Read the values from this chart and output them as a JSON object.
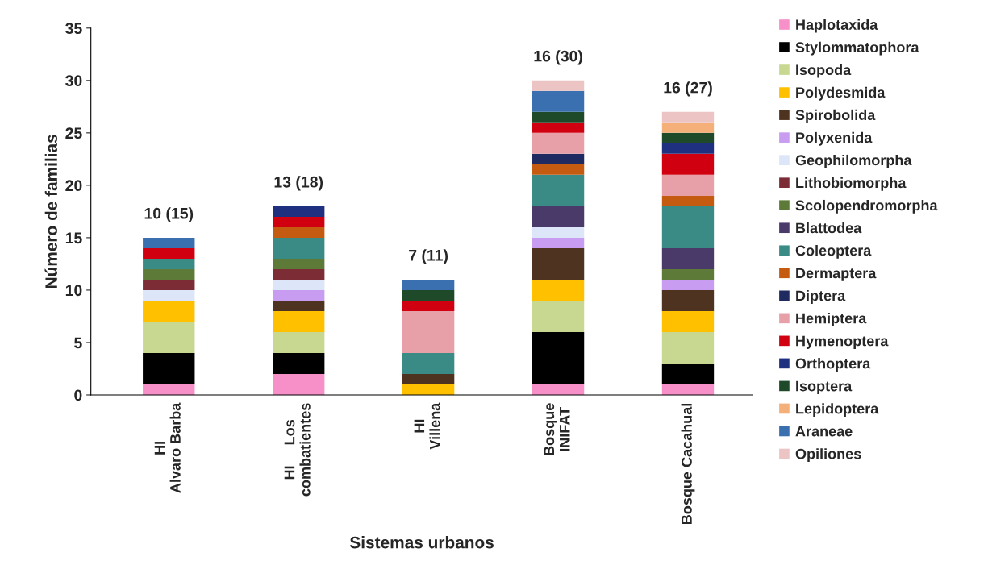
{
  "chart_data": {
    "type": "bar",
    "stacked": true,
    "xlabel": "Sistemas urbanos",
    "ylabel": "Número de familias",
    "categories": [
      "HI\nAlvaro Barba",
      "HI     Los\ncombatientes",
      "HI\nVillena",
      "Bosque\nINIFAT",
      "Bosque Cacahual"
    ],
    "ylim": [
      0,
      35
    ],
    "yticks": [
      0,
      5,
      10,
      15,
      20,
      25,
      30,
      35
    ],
    "grid": false,
    "legend": "right",
    "series": [
      {
        "name": "Haplotaxida",
        "color": "#f78fc8",
        "values": [
          1,
          2,
          0,
          1,
          1
        ]
      },
      {
        "name": "Stylommatophora",
        "color": "#000000",
        "values": [
          3,
          2,
          0,
          5,
          2
        ]
      },
      {
        "name": "Isopoda",
        "color": "#c8d890",
        "values": [
          3,
          2,
          0,
          3,
          3
        ]
      },
      {
        "name": "Polydesmida",
        "color": "#ffc000",
        "values": [
          2,
          2,
          1,
          2,
          2
        ]
      },
      {
        "name": "Spirobolida",
        "color": "#4e3320",
        "values": [
          0,
          1,
          1,
          3,
          2
        ]
      },
      {
        "name": "Polyxenida",
        "color": "#c89cf0",
        "values": [
          0,
          1,
          0,
          1,
          1
        ]
      },
      {
        "name": "Geophilomorpha",
        "color": "#dce6f8",
        "values": [
          1,
          1,
          0,
          1,
          0
        ]
      },
      {
        "name": "Lithobiomorpha",
        "color": "#7b2c34",
        "values": [
          1,
          1,
          0,
          0,
          0
        ]
      },
      {
        "name": "Scolopendromorpha",
        "color": "#5e7a38",
        "values": [
          1,
          1,
          0,
          0,
          1
        ]
      },
      {
        "name": "Blattodea",
        "color": "#4a3a6a",
        "values": [
          0,
          0,
          0,
          2,
          2
        ]
      },
      {
        "name": "Coleoptera",
        "color": "#3a8a86",
        "values": [
          1,
          2,
          2,
          3,
          4
        ]
      },
      {
        "name": "Dermaptera",
        "color": "#c55a11",
        "values": [
          0,
          1,
          0,
          1,
          1
        ]
      },
      {
        "name": "Diptera",
        "color": "#1f2a60",
        "values": [
          0,
          0,
          0,
          1,
          0
        ]
      },
      {
        "name": "Hemiptera",
        "color": "#e8a0a8",
        "values": [
          0,
          0,
          4,
          2,
          2
        ]
      },
      {
        "name": "Hymenoptera",
        "color": "#d00010",
        "values": [
          1,
          1,
          1,
          1,
          2
        ]
      },
      {
        "name": "Orthoptera",
        "color": "#203080",
        "values": [
          0,
          1,
          0,
          0,
          1
        ]
      },
      {
        "name": "Isoptera",
        "color": "#1e4a2a",
        "values": [
          0,
          0,
          1,
          1,
          1
        ]
      },
      {
        "name": "Lepidoptera",
        "color": "#f4b078",
        "values": [
          0,
          0,
          0,
          0,
          1
        ]
      },
      {
        "name": "Araneae",
        "color": "#3a70b0",
        "values": [
          1,
          0,
          1,
          2,
          0
        ]
      },
      {
        "name": "Opiliones",
        "color": "#ecc4c4",
        "values": [
          0,
          0,
          0,
          1,
          1
        ]
      }
    ],
    "annotations": [
      {
        "text": "10 (15)",
        "x": "HI\nAlvaro Barba",
        "y": 15
      },
      {
        "text": "13 (18)",
        "x": "HI     Los\ncombatientes",
        "y": 18
      },
      {
        "text": "7 (11)",
        "x": "HI\nVillena",
        "y": 11
      },
      {
        "text": "16 (30)",
        "x": "Bosque\nINIFAT",
        "y": 30
      },
      {
        "text": "16 (27)",
        "x": "Bosque Cacahual",
        "y": 27
      }
    ]
  }
}
